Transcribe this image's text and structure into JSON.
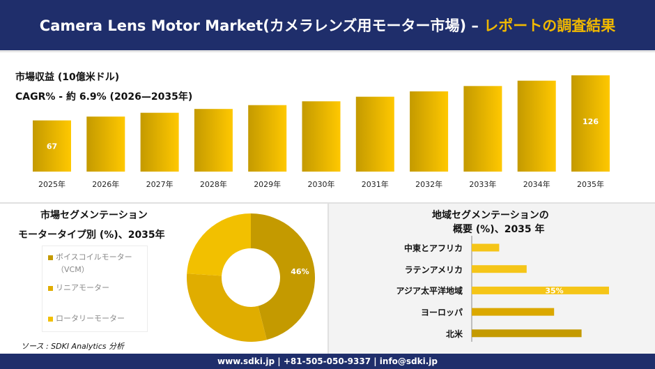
{
  "header": {
    "title_white": "Camera Lens Motor Market(カメラレンズ用モーター市場) –",
    "title_gold": "レポートの調査結果"
  },
  "stats": {
    "revenue_label": "市場収益 (10億米ドル)",
    "cagr_label": "CAGR% - 約 6.9% (2026—2035年)"
  },
  "colors": {
    "header_bg": "#1f2e6b",
    "accent_gold": "#f0b800",
    "bar_dark": "#c49a00",
    "bar_light": "#ffc800"
  },
  "chart_data": [
    {
      "type": "bar",
      "categories": [
        "2025年",
        "2026年",
        "2027年",
        "2028年",
        "2029年",
        "2030年",
        "2031年",
        "2032年",
        "2033年",
        "2034年",
        "2035年"
      ],
      "values": [
        67,
        72,
        77,
        82,
        87,
        92,
        98,
        105,
        112,
        119,
        126
      ],
      "data_labels": {
        "0": "67",
        "10": "126"
      },
      "grid": false
    },
    {
      "type": "pie",
      "title": "市場セグメンテーション",
      "subtitle": "モータータイプ別 (%)、2035年",
      "labels": [
        "ボイスコイルモーター（VCM）",
        "リニアモーター",
        "ロータリーモーター"
      ],
      "values": [
        46,
        30,
        24
      ],
      "colors": [
        "#c49a00",
        "#e0ad00",
        "#f2c000"
      ],
      "data_labels": {
        "0": "46%"
      }
    },
    {
      "type": "bar",
      "orientation": "horizontal",
      "title": "地域セグメンテーションの",
      "subtitle": "概要 (%)、2035 年",
      "categories": [
        "中東とアフリカ",
        "ラテンアメリカ",
        "アジア太平洋地域",
        "ヨーロッパ",
        "北米"
      ],
      "values": [
        7,
        14,
        35,
        21,
        28
      ],
      "data_labels": {
        "2": "35%"
      },
      "colors": [
        "#f5c518",
        "#f5c518",
        "#f5c518",
        "#dba800",
        "#c49a00"
      ]
    }
  ],
  "legend": {
    "items": [
      "ボイスコイルモーター",
      "（VCM）",
      "リニアモーター",
      "ロータリーモーター"
    ]
  },
  "source": "ソース : SDKI Analytics 分析",
  "footer": "www.sdki.jp | +81-505-050-9337 | info@sdki.jp"
}
